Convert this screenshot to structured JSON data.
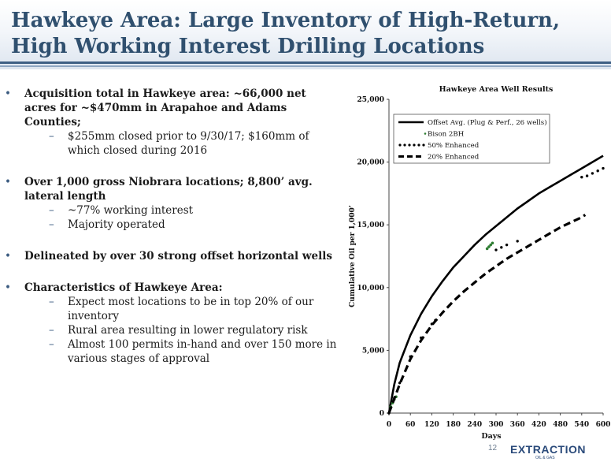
{
  "title": "Hawkeye Area: Large Inventory of High-Return, High Working Interest Drilling Locations",
  "bullets": [
    {
      "text": "Acquisition total in Hawkeye area: ~66,000 net acres for ~$470mm in Arapahoe and Adams Counties;",
      "sub": [
        "$255mm closed prior to 9/30/17; $160mm of which closed during 2016"
      ]
    },
    {
      "text": "Over 1,000 gross Niobrara locations; 8,800’ avg. lateral length",
      "sub": [
        "~77% working interest",
        "Majority operated"
      ]
    },
    {
      "text": "Delineated by over 30 strong offset horizontal wells",
      "sub": []
    },
    {
      "text": "Characteristics of Hawkeye Area:",
      "sub": [
        "Expect most locations to be in top 20% of our inventory",
        "Rural area resulting in lower regulatory risk",
        "Almost 100 permits in-hand and over 150 more in various stages of approval"
      ]
    }
  ],
  "chart_data": {
    "type": "line",
    "title": "Hawkeye Area Well Results",
    "xlabel": "Days",
    "ylabel": "Cumulative Oil per 1,000’",
    "xlim": [
      0,
      600
    ],
    "ylim": [
      0,
      25000
    ],
    "xticks": [
      "0",
      "60",
      "120",
      "180",
      "240",
      "300",
      "360",
      "420",
      "480",
      "540",
      "600"
    ],
    "yticks": [
      "0",
      "5,000",
      "10,000",
      "15,000",
      "20,000",
      "25,000"
    ],
    "legend_position": "top-left",
    "series": [
      {
        "name": "Offset Avg. (Plug & Perf., 26 wells)",
        "style": "solid",
        "color": "#000000",
        "x": [
          0,
          15,
          30,
          60,
          90,
          120,
          150,
          180,
          210,
          240,
          270,
          300,
          330,
          360,
          390,
          420,
          450,
          480,
          510,
          540,
          570,
          600
        ],
        "y": [
          0,
          2300,
          4000,
          6200,
          7900,
          9300,
          10500,
          11600,
          12500,
          13400,
          14200,
          14900,
          15600,
          16300,
          16900,
          17500,
          18000,
          18500,
          19000,
          19500,
          20000,
          20500
        ]
      },
      {
        "name": "Bison 2BH",
        "style": "marker",
        "color": "#2e7d32",
        "x": [
          5,
          10,
          15,
          20,
          275,
          280,
          285,
          290
        ],
        "y": [
          500,
          800,
          1100,
          1300,
          13100,
          13250,
          13400,
          13550
        ]
      },
      {
        "name": "50% Enhanced",
        "style": "dotted",
        "color": "#000000",
        "x": [
          0,
          15,
          30,
          60,
          90,
          120,
          130,
          300,
          315,
          330,
          360,
          540,
          555,
          570,
          585,
          600
        ],
        "y": [
          0,
          1200,
          2400,
          4500,
          6000,
          7100,
          7400,
          13000,
          13200,
          13400,
          13700,
          18800,
          18900,
          19100,
          19300,
          19500
        ]
      },
      {
        "name": "20% Enhanced",
        "style": "dashed",
        "color": "#000000",
        "x": [
          0,
          30,
          60,
          90,
          120,
          150,
          180,
          210,
          240,
          270,
          300,
          330,
          360,
          390,
          420,
          450,
          480,
          510,
          540,
          550
        ],
        "y": [
          0,
          2300,
          4300,
          5800,
          7000,
          8000,
          8900,
          9700,
          10400,
          11100,
          11700,
          12300,
          12800,
          13300,
          13800,
          14300,
          14800,
          15200,
          15600,
          15800
        ]
      }
    ]
  },
  "footer": {
    "page_number": "12",
    "logo_text": "EXTRACTION",
    "logo_sub": "OIL & GAS"
  }
}
